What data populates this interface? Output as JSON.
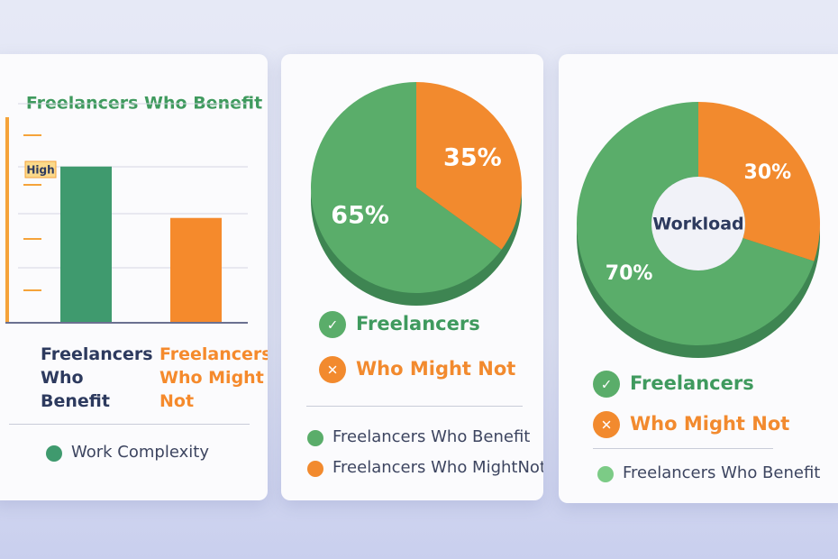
{
  "chart_data": [
    {
      "type": "bar",
      "title": "Freelancers Who Benefit",
      "categories": [
        "Freelancers Who Benefit",
        "Freelancers Who Might Not"
      ],
      "values": [
        76,
        51
      ],
      "colors": [
        "#3f9a6e",
        "#f58a2c"
      ],
      "ylim": [
        0,
        100
      ],
      "annotation": "High",
      "legend": [
        "Work Complexity"
      ]
    },
    {
      "type": "pie",
      "categories": [
        "Freelancers",
        "Who Might Not"
      ],
      "values": [
        65,
        35
      ],
      "value_labels": [
        "65%",
        "35%"
      ],
      "colors": [
        "#5aad6a",
        "#f28a2e"
      ],
      "legend": [
        "Freelancers Who Benefit",
        "Freelancers Who MightNot"
      ]
    },
    {
      "type": "donut",
      "center_label": "Workload",
      "categories": [
        "Freelancers",
        "Who Might Not"
      ],
      "values": [
        70,
        30
      ],
      "value_labels": [
        "70%",
        "30%"
      ],
      "colors": [
        "#5aad6a",
        "#f28a2e"
      ],
      "legend": [
        "Freelancers Who Benefit"
      ]
    }
  ]
}
